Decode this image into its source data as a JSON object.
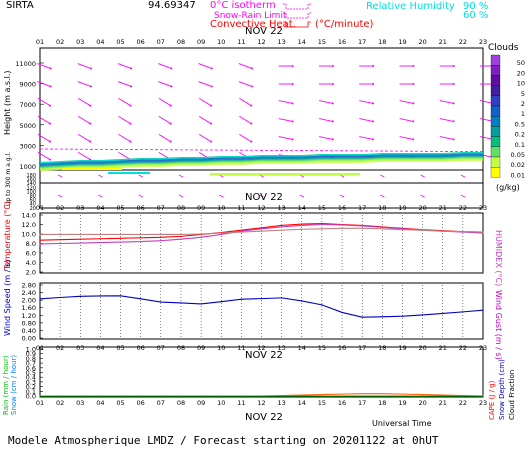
{
  "header": {
    "station": "SIRTA",
    "coords": "94.69347",
    "zero_iso": "0°C isotherm",
    "snow_rain": "Snow-Rain Limit",
    "conv_heat": "Convective Heat.",
    "conv_unit": "(°C/minute)",
    "rh_label": "Relative Humidity",
    "rh_90": "90 %",
    "rh_60": "60 %",
    "colors": {
      "zero_iso": "#ff00ff",
      "conv": "#ff0000",
      "rh": "#00e0e0"
    }
  },
  "footer": {
    "title": "Modele Atmospherique LMDZ / Forecast starting on 20201122 at 0hUT",
    "time_label": "Universal Time"
  },
  "hours": [
    "01",
    "02",
    "03",
    "04",
    "05",
    "06",
    "07",
    "08",
    "09",
    "10",
    "11",
    "12",
    "13",
    "14",
    "15",
    "16",
    "17",
    "18",
    "19",
    "20",
    "21",
    "22",
    "23"
  ],
  "date_label": "NOV 22",
  "panels": {
    "height": {
      "ylabel": "Height  (m a.s.l.)",
      "ylabel_low": "Up to 300 m a.g.l.",
      "ticks_high": [
        "11000",
        "9000",
        "7000",
        "5000",
        "3000",
        "1000"
      ],
      "ticks_low": [
        "180",
        "160",
        "140",
        "120",
        "100",
        "80",
        "60",
        "40",
        "20"
      ]
    },
    "clouds": {
      "title": "Clouds",
      "unit": "(g/kg)",
      "levels": [
        "0.01",
        "0.02",
        "0.05",
        "0.1",
        "0.2",
        "0.5",
        "1",
        "2",
        "5",
        "10",
        "20",
        "50"
      ],
      "colors": [
        "#ffff00",
        "#c0ff40",
        "#60e060",
        "#00c080",
        "#00a0a0",
        "#0080c0",
        "#1060d0",
        "#3040c0",
        "#4020a0",
        "#6010a0",
        "#8020c0",
        "#a040e0"
      ]
    },
    "wind_label": "Wind",
    "temperature": {
      "ylabel": "Temperature (°C)",
      "ylabel_right": "HUMIDEX (°C)"
    },
    "wind": {
      "ylabel": "Wind Speed (m / s)",
      "ylabel_right": "Wind Gust (m / s)"
    },
    "precip": {
      "ylabel_rain": "Rain (mm / hour)",
      "ylabel_snow": "Snow (cm / hour)",
      "ylabel_cape": "CAPE (J / g)",
      "ylabel_snowdepth": "Snow Depth (cm)",
      "ylabel_cloud": "Cloud Fraction"
    }
  },
  "chart_data": [
    {
      "type": "line",
      "title": "Temperature",
      "x": [
        "01",
        "02",
        "03",
        "04",
        "05",
        "06",
        "07",
        "08",
        "09",
        "10",
        "11",
        "12",
        "13",
        "14",
        "15",
        "16",
        "17",
        "18",
        "19",
        "20",
        "21",
        "22",
        "23"
      ],
      "yticks": [
        "2.0",
        "4.0",
        "6.0",
        "8.0",
        "10.0",
        "12.0",
        "14.0"
      ],
      "ylim": [
        2,
        14
      ],
      "series": [
        {
          "name": "Temperature",
          "color": "#ff0000",
          "values": [
            8.7,
            8.8,
            8.9,
            9.0,
            9.1,
            9.2,
            9.3,
            9.5,
            9.9,
            10.3,
            10.8,
            11.3,
            11.8,
            12.1,
            12.2,
            12.0,
            11.8,
            11.5,
            11.2,
            10.9,
            10.7,
            10.5,
            10.4
          ]
        },
        {
          "name": "Humidex",
          "color": "#c040c0",
          "values": [
            7.9,
            8.0,
            8.1,
            8.2,
            8.3,
            8.4,
            8.6,
            8.9,
            9.3,
            9.9,
            10.6,
            11.1,
            11.5,
            11.8,
            12.0,
            11.9,
            11.7,
            11.4,
            11.1,
            10.8,
            10.6,
            10.4,
            10.2
          ]
        },
        {
          "name": "Dew point",
          "color": "#c08080",
          "values": [
            9.9,
            9.9,
            9.9,
            9.9,
            9.9,
            9.9,
            9.9,
            9.9,
            10.0,
            10.2,
            10.4,
            10.6,
            10.8,
            11.0,
            11.1,
            11.2,
            11.2,
            11.1,
            10.9,
            10.8,
            10.6,
            10.5,
            10.4
          ]
        }
      ]
    },
    {
      "type": "line",
      "title": "Wind Speed",
      "x": [
        "01",
        "02",
        "03",
        "04",
        "05",
        "06",
        "07",
        "08",
        "09",
        "10",
        "11",
        "12",
        "13",
        "14",
        "15",
        "16",
        "17",
        "18",
        "19",
        "20",
        "21",
        "22",
        "23"
      ],
      "yticks": [
        "0.00",
        "0.40",
        "0.80",
        "1.20",
        "1.60",
        "2.00",
        "2.40",
        "2.80"
      ],
      "ylim": [
        0,
        2.8
      ],
      "series": [
        {
          "name": "Wind Speed",
          "color": "#0000c0",
          "values": [
            2.07,
            2.14,
            2.2,
            2.22,
            2.23,
            2.07,
            1.9,
            1.85,
            1.8,
            1.92,
            2.05,
            2.08,
            2.12,
            1.96,
            1.75,
            1.35,
            1.1,
            1.12,
            1.15,
            1.22,
            1.3,
            1.38,
            1.47
          ]
        }
      ]
    },
    {
      "type": "line",
      "title": "Precipitation",
      "x": [
        "01",
        "02",
        "03",
        "04",
        "05",
        "06",
        "07",
        "08",
        "09",
        "10",
        "11",
        "12",
        "13",
        "14",
        "15",
        "16",
        "17",
        "18",
        "19",
        "20",
        "21",
        "22",
        "23"
      ],
      "yticks": [
        "0.0",
        "0.1",
        "0.2",
        "0.3",
        "0.4",
        "0.5",
        "0.6",
        "0.7",
        "0.8",
        "0.9",
        "1.0"
      ],
      "ylim": [
        0,
        1.0
      ],
      "series": [
        {
          "name": "CAPE",
          "color": "#ff6000",
          "values": [
            0,
            0,
            0,
            0,
            0,
            0,
            0,
            0,
            0,
            0,
            0,
            0,
            0.01,
            0.02,
            0.03,
            0.04,
            0.05,
            0.05,
            0.04,
            0.03,
            0.02,
            0.01,
            0
          ]
        },
        {
          "name": "Rain",
          "color": "#00c000",
          "values": [
            0,
            0,
            0,
            0,
            0,
            0,
            0,
            0,
            0,
            0,
            0,
            0,
            0,
            0,
            0,
            0,
            0,
            0,
            0,
            0,
            0,
            0,
            0
          ]
        }
      ]
    }
  ]
}
